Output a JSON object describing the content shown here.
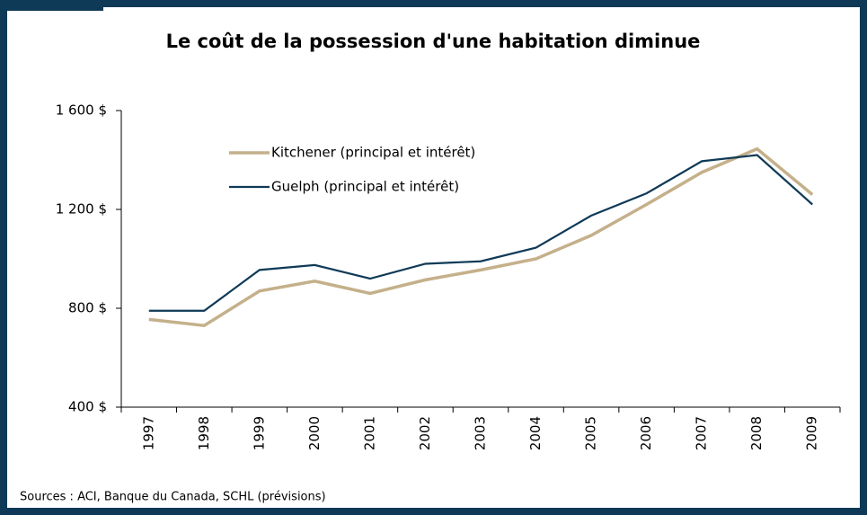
{
  "chart_data": {
    "type": "line",
    "title": "Le coût de la possession d'une habitation diminue",
    "categories": [
      "1997",
      "1998",
      "1999",
      "2000",
      "2001",
      "2002",
      "2003",
      "2004",
      "2005",
      "2006",
      "2007",
      "2008",
      "2009"
    ],
    "series": [
      {
        "name": "Kitchener (principal et intérêt)",
        "color": "#c4b08a",
        "values": [
          755,
          730,
          870,
          910,
          860,
          915,
          955,
          1000,
          1095,
          1220,
          1350,
          1445,
          1260
        ]
      },
      {
        "name": "Guelph (principal et intérêt)",
        "color": "#0f3a57",
        "values": [
          790,
          790,
          955,
          975,
          920,
          980,
          990,
          1045,
          1175,
          1265,
          1395,
          1420,
          1220
        ]
      }
    ],
    "ylim": [
      400,
      1600
    ],
    "yticks": [
      {
        "value": 400,
        "label": "400 $"
      },
      {
        "value": 800,
        "label": "800 $"
      },
      {
        "value": 1200,
        "label": "1 200 $"
      },
      {
        "value": 1600,
        "label": "1 600 $"
      }
    ],
    "legend": "upper left",
    "source": "Sources : ACI, Banque du Canada, SCHL (prévisions)"
  }
}
